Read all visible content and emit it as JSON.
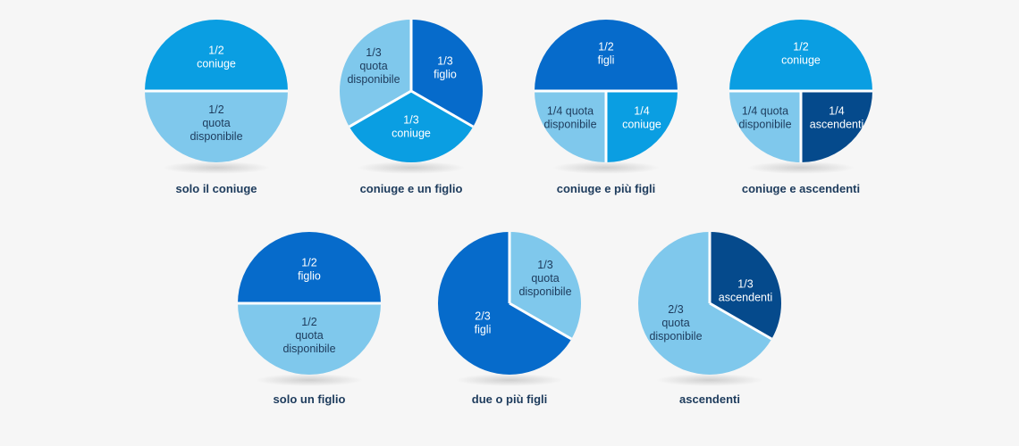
{
  "colors": {
    "light": "#7fc8ec",
    "medium": "#0a9ee2",
    "dark": "#066bcb",
    "darker": "#054a8c",
    "separator": "#ffffff"
  },
  "chart_data": [
    {
      "type": "pie",
      "caption": "solo il coniuge",
      "slices": [
        {
          "fraction": 0.5,
          "color": "medium",
          "label": [
            "1/2",
            "coniuge"
          ]
        },
        {
          "fraction": 0.5,
          "color": "light",
          "label": [
            "1/2",
            "quota",
            "disponibile"
          ],
          "dark_text": true
        }
      ]
    },
    {
      "type": "pie",
      "caption": "coniuge e un figlio",
      "slices": [
        {
          "fraction": 0.3333,
          "color": "dark",
          "label": [
            "1/3",
            "figlio"
          ]
        },
        {
          "fraction": 0.3333,
          "color": "medium",
          "label": [
            "1/3",
            "coniuge"
          ]
        },
        {
          "fraction": 0.3333,
          "color": "light",
          "label": [
            "1/3",
            "quota",
            "disponibile"
          ],
          "dark_text": true
        }
      ]
    },
    {
      "type": "pie",
      "caption": "coniuge e più figli",
      "slices": [
        {
          "fraction": 0.5,
          "color": "dark",
          "label": [
            "1/2",
            "figli"
          ]
        },
        {
          "fraction": 0.25,
          "color": "medium",
          "label": [
            "1/4",
            "coniuge"
          ]
        },
        {
          "fraction": 0.25,
          "color": "light",
          "label": [
            "1/4 quota",
            "disponibile"
          ],
          "dark_text": true
        }
      ]
    },
    {
      "type": "pie",
      "caption": "coniuge e ascendenti",
      "slices": [
        {
          "fraction": 0.5,
          "color": "medium",
          "label": [
            "1/2",
            "coniuge"
          ]
        },
        {
          "fraction": 0.25,
          "color": "darker",
          "label": [
            "1/4",
            "ascendenti"
          ]
        },
        {
          "fraction": 0.25,
          "color": "light",
          "label": [
            "1/4 quota",
            "disponibile"
          ],
          "dark_text": true
        }
      ]
    },
    {
      "type": "pie",
      "caption": "solo un figlio",
      "slices": [
        {
          "fraction": 0.5,
          "color": "dark",
          "label": [
            "1/2",
            "figlio"
          ]
        },
        {
          "fraction": 0.5,
          "color": "light",
          "label": [
            "1/2",
            "quota",
            "disponibile"
          ],
          "dark_text": true
        }
      ]
    },
    {
      "type": "pie",
      "caption": "due o più figli",
      "slices": [
        {
          "fraction": 0.3333,
          "color": "light",
          "label": [
            "1/3",
            "quota",
            "disponibile"
          ],
          "dark_text": true
        },
        {
          "fraction": 0.6667,
          "color": "dark",
          "label": [
            "2/3",
            "figli"
          ]
        }
      ]
    },
    {
      "type": "pie",
      "caption": "ascendenti",
      "slices": [
        {
          "fraction": 0.3333,
          "color": "darker",
          "label": [
            "1/3",
            "ascendenti"
          ]
        },
        {
          "fraction": 0.6667,
          "color": "light",
          "label": [
            "2/3",
            "quota",
            "disponibile"
          ],
          "dark_text": true
        }
      ]
    }
  ]
}
